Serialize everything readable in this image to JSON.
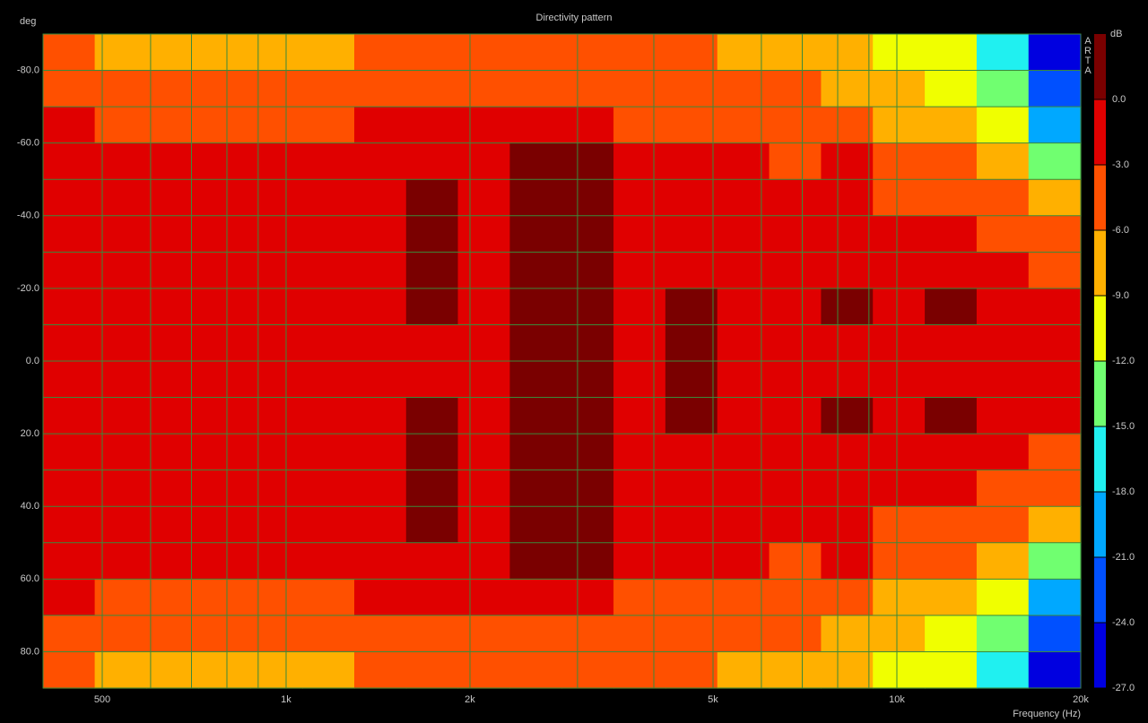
{
  "chart_data": {
    "type": "heatmap",
    "title": "Directivity pattern",
    "y_label": "deg",
    "x_label": "Frequency (Hz)",
    "colorbar_label": "dB",
    "brand": "ARTA",
    "log_x": true,
    "xlim": [
      400,
      20000
    ],
    "xticks": [
      {
        "value": 500,
        "label": "500"
      },
      {
        "value": 1000,
        "label": "1k"
      },
      {
        "value": 2000,
        "label": "2k"
      },
      {
        "value": 5000,
        "label": "5k"
      },
      {
        "value": 10000,
        "label": "10k"
      },
      {
        "value": 20000,
        "label": "20k"
      }
    ],
    "x_minor_grid": [
      600,
      700,
      800,
      900,
      3000,
      4000,
      6000,
      7000,
      8000,
      9000
    ],
    "ylim": [
      -90,
      90
    ],
    "yticks": [
      {
        "value": -80,
        "label": "-80.0"
      },
      {
        "value": -60,
        "label": "-60.0"
      },
      {
        "value": -40,
        "label": "-40.0"
      },
      {
        "value": -20,
        "label": "-20.0"
      },
      {
        "value": 0,
        "label": "0.0"
      },
      {
        "value": 20,
        "label": "20.0"
      },
      {
        "value": 40,
        "label": "40.0"
      },
      {
        "value": 60,
        "label": "60.0"
      },
      {
        "value": 80,
        "label": "80.0"
      }
    ],
    "y_minor_grid": [
      -70,
      -50,
      -30,
      -10,
      10,
      30,
      50,
      70
    ],
    "grid": true,
    "grid_color": "#3a8a3a",
    "x_edges": [
      400,
      486,
      591,
      719,
      874,
      1063,
      1293,
      1572,
      1911,
      2324,
      2826,
      3436,
      4178,
      5081,
      6178,
      7513,
      9135,
      11108,
      13508,
      16426,
      20000
    ],
    "y_edges": [
      -90,
      -80,
      -70,
      -60,
      -50,
      -40,
      -30,
      -20,
      -10,
      0,
      10,
      20,
      30,
      40,
      50,
      60,
      70,
      80,
      90
    ],
    "z": [
      [
        -5,
        -6.5,
        -7,
        -7.5,
        -7.5,
        -7,
        -6,
        -5,
        -4,
        -4,
        -4,
        -5,
        -5,
        -6.5,
        -7,
        -8,
        -10,
        -12,
        -18,
        -25
      ],
      [
        -4,
        -5,
        -5,
        -6,
        -6,
        -5,
        -4.5,
        -4,
        -3.5,
        -3.5,
        -3.5,
        -4,
        -4.5,
        -4.5,
        -5,
        -6.5,
        -9,
        -10,
        -15,
        -24
      ],
      [
        -2,
        -3.5,
        -4,
        -4,
        -4,
        -3.5,
        -3,
        -3,
        -2,
        -1.5,
        -1.5,
        -3.5,
        -3.5,
        -3.5,
        -4,
        -3.5,
        -7,
        -8,
        -12,
        -20
      ],
      [
        -1.5,
        -2,
        -2,
        -2,
        -2,
        -2,
        -1.5,
        -1.5,
        -1.5,
        0.5,
        0.5,
        -2,
        -2,
        -2,
        -3.5,
        -3,
        -5,
        -6,
        -9,
        -14
      ],
      [
        -1,
        -1,
        -1,
        -1,
        -1,
        -1,
        -1,
        0.5,
        -1,
        0.5,
        0.5,
        -1,
        -0.5,
        -1,
        -2,
        -2,
        -3.5,
        -3.5,
        -6,
        -8
      ],
      [
        -1,
        -1,
        -1,
        -1,
        -1,
        -1,
        -0.5,
        0.5,
        -0.5,
        0.5,
        0.5,
        -0.5,
        -1,
        -1,
        -1,
        -1.5,
        -2,
        -2,
        -3.5,
        -5
      ],
      [
        -0.5,
        -0.5,
        -0.5,
        -0.5,
        -0.5,
        -0.5,
        -0.5,
        0.5,
        -0.5,
        0.5,
        0.5,
        -0.5,
        -1,
        -1,
        -1,
        -1,
        -1,
        -1,
        -2,
        -3.5
      ],
      [
        -0.5,
        -0.5,
        -0.5,
        -0.5,
        -0.5,
        -0.5,
        -0.5,
        0.5,
        -0.5,
        0.5,
        0.5,
        -0.5,
        0.5,
        -0.5,
        -1,
        0.5,
        -1,
        0.5,
        -1,
        -1
      ],
      [
        -0.5,
        -0.5,
        -0.5,
        -0.5,
        -0.5,
        -0.5,
        -0.5,
        -0.5,
        -0.5,
        0.5,
        0.5,
        -0.5,
        0.5,
        -0.5,
        -0.5,
        -0.5,
        -0.5,
        -0.5,
        -0.5,
        -0.5
      ],
      [
        -0.5,
        -0.5,
        -0.5,
        -0.5,
        -0.5,
        -0.5,
        -0.5,
        -0.5,
        -0.5,
        0.5,
        0.5,
        -0.5,
        0.5,
        -0.5,
        -0.5,
        -0.5,
        -0.5,
        -0.5,
        -0.5,
        -0.5
      ],
      [
        -0.5,
        -0.5,
        -0.5,
        -0.5,
        -0.5,
        -0.5,
        -0.5,
        0.5,
        -0.5,
        0.5,
        0.5,
        -0.5,
        0.5,
        -0.5,
        -1,
        0.5,
        -1,
        0.5,
        -1,
        -1
      ],
      [
        -0.5,
        -0.5,
        -0.5,
        -0.5,
        -0.5,
        -0.5,
        -0.5,
        0.5,
        -0.5,
        0.5,
        0.5,
        -0.5,
        -1,
        -1,
        -1,
        -1,
        -1,
        -1,
        -2,
        -3.5
      ],
      [
        -1,
        -1,
        -1,
        -1,
        -1,
        -1,
        -0.5,
        0.5,
        -0.5,
        0.5,
        0.5,
        -0.5,
        -1,
        -1,
        -1,
        -1.5,
        -2,
        -2,
        -3.5,
        -5
      ],
      [
        -1,
        -1,
        -1,
        -1,
        -1,
        -1,
        -1,
        0.5,
        -1,
        0.5,
        0.5,
        -1,
        -0.5,
        -1,
        -2,
        -2,
        -3.5,
        -3.5,
        -6,
        -8
      ],
      [
        -1.5,
        -2,
        -2,
        -2,
        -2,
        -2,
        -1.5,
        -1.5,
        -1.5,
        0.5,
        0.5,
        -2,
        -2,
        -2,
        -3.5,
        -3,
        -5,
        -6,
        -9,
        -14
      ],
      [
        -2,
        -3.5,
        -4,
        -4,
        -4,
        -3.5,
        -3,
        -3,
        -2,
        -1.5,
        -1.5,
        -3.5,
        -3.5,
        -3.5,
        -4,
        -3.5,
        -7,
        -8,
        -12,
        -20
      ],
      [
        -4,
        -5,
        -5,
        -6,
        -6,
        -5,
        -4.5,
        -4,
        -3.5,
        -3.5,
        -3.5,
        -4,
        -4.5,
        -4.5,
        -5,
        -6.5,
        -9,
        -10,
        -15,
        -24
      ],
      [
        -5,
        -6.5,
        -7,
        -7.5,
        -7.5,
        -7,
        -6,
        -5,
        -4,
        -4,
        -4,
        -5,
        -5,
        -6.5,
        -7,
        -8,
        -10,
        -12,
        -18,
        -25
      ]
    ],
    "levels": [
      -27,
      -24,
      -21,
      -18,
      -15,
      -12,
      -9,
      -6,
      -3,
      0,
      3
    ],
    "colors": [
      "#0000e0",
      "#0050ff",
      "#00a8ff",
      "#20f0f0",
      "#70ff70",
      "#f0ff00",
      "#ffb000",
      "#ff5000",
      "#e00000",
      "#7a0000"
    ],
    "zlim": [
      -27,
      3
    ],
    "zticks": [
      {
        "value": 0,
        "label": "0.0"
      },
      {
        "value": -3,
        "label": "-3.0"
      },
      {
        "value": -6,
        "label": "-6.0"
      },
      {
        "value": -9,
        "label": "-9.0"
      },
      {
        "value": -12,
        "label": "-12.0"
      },
      {
        "value": -15,
        "label": "-15.0"
      },
      {
        "value": -18,
        "label": "-18.0"
      },
      {
        "value": -21,
        "label": "-21.0"
      },
      {
        "value": -24,
        "label": "-24.0"
      },
      {
        "value": -27,
        "label": "-27.0"
      }
    ]
  }
}
